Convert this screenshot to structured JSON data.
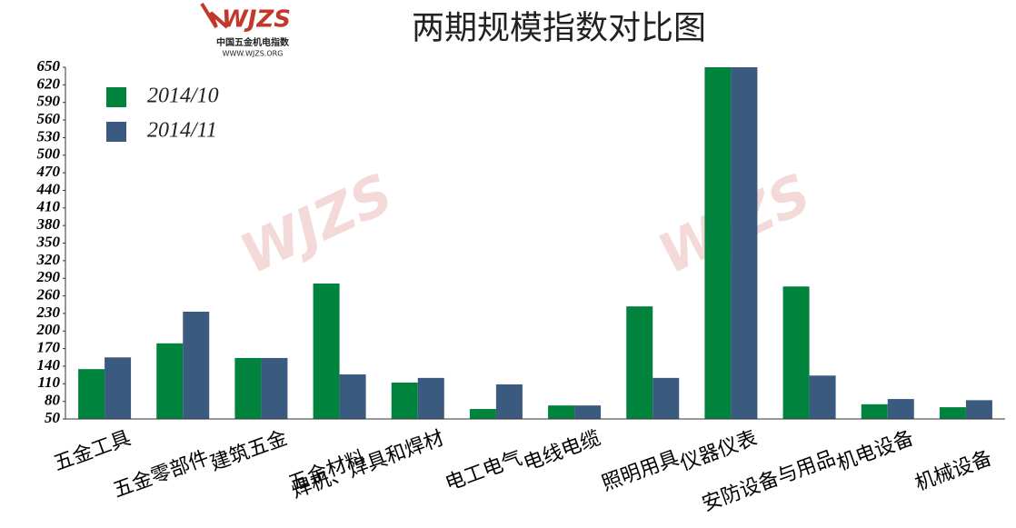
{
  "chart_data": {
    "type": "bar",
    "title": "两期规模指数对比图",
    "logo": {
      "mark": "WJZS",
      "name": "中国五金机电指数",
      "url": "WWW.WJZS.ORG"
    },
    "categories": [
      "五金工具",
      "五金零部件",
      "建筑五金",
      "五金材料",
      "焊机、焊具和焊材",
      "电工电气",
      "电线电缆",
      "照明用具",
      "仪器仪表",
      "安防设备与用品",
      "机电设备",
      "机械设备"
    ],
    "series": [
      {
        "name": "2014/10",
        "color": "#00843d",
        "values": [
          135,
          179,
          154,
          281,
          112,
          67,
          73,
          242,
          650,
          276,
          75,
          70
        ]
      },
      {
        "name": "2014/11",
        "color": "#3a5a80",
        "values": [
          155,
          233,
          154,
          126,
          120,
          109,
          73,
          120,
          650,
          124,
          84,
          82
        ]
      }
    ],
    "ylim": [
      50,
      650
    ],
    "yticks": [
      50,
      80,
      110,
      140,
      170,
      200,
      230,
      260,
      290,
      320,
      350,
      380,
      410,
      440,
      470,
      500,
      530,
      560,
      590,
      620,
      650
    ],
    "grid": false,
    "legend": "top-left"
  }
}
